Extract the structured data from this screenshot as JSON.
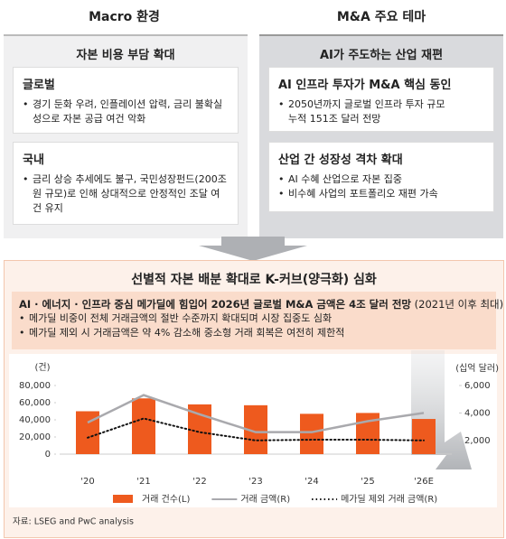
{
  "headers": {
    "left": "Macro 환경",
    "right": "M&A 주요 테마"
  },
  "left_panel": {
    "title": "자본 비용 부담 확대",
    "cards": [
      {
        "title": "글로벌",
        "bullets": [
          "경기 둔화 우려, 인플레이션 압력, 금리 불확실성으로 자본 공급 여건 악화"
        ]
      },
      {
        "title": "국내",
        "bullets": [
          "금리 상승 추세에도 불구, 국민성장펀드(200조 원 규모)로 인해 상대적으로 안정적인 조달 여건 유지"
        ]
      }
    ]
  },
  "right_panel": {
    "title": "AI가 주도하는 산업 재편",
    "cards": [
      {
        "title": "AI 인프라 투자가 M&A 핵심 동인",
        "bullets": [
          "2050년까지 글로벌 인프라 투자 규모 누적 151조 달러 전망"
        ]
      },
      {
        "title": "산업 간 성장성 격차 확대",
        "bullets": [
          "AI 수혜 산업으로 자본 집중",
          "비수혜 사업의 포트폴리오 재편 가속"
        ]
      }
    ]
  },
  "summary": {
    "title": "선별적 자본 배분 확대로 K-커브(양극화) 심화",
    "highlight": "AI · 에너지 · 인프라 중심 메가딜에 힘입어 2026년 글로벌 M&A 금액은 4조 달러 전망",
    "highlight_note": "(2021년 이후 최대)",
    "bullets": [
      "메가딜 비중이 전체 거래금액의 절반 수준까지 확대되며 시장 집중도 심화",
      "메가딜 제외 시 거래금액은 약 4% 감소해 중소형 거래 회복은 여전히 제한적"
    ]
  },
  "chart_data": {
    "type": "bar",
    "ylabel": "(건)",
    "y2label": "(십억 달러)",
    "categories": [
      "'20",
      "'21",
      "'22",
      "'23",
      "'24",
      "'25",
      "'26E"
    ],
    "series": [
      {
        "name": "거래 건수(L)",
        "type": "bar",
        "color": "#ee5a1e",
        "values": [
          50000,
          65000,
          58000,
          57000,
          47000,
          48000,
          41000
        ]
      },
      {
        "name": "거래 금액(R)",
        "type": "line",
        "axis": "y2",
        "color": "#a9a9ad",
        "line_style": "solid",
        "values": [
          3300,
          5300,
          3900,
          2600,
          2600,
          3400,
          4000
        ]
      },
      {
        "name": "메가딜 제외 거래 금액(R)",
        "type": "line",
        "axis": "y2",
        "color": "#111111",
        "line_style": "dotted",
        "values": [
          2200,
          3600,
          2600,
          2000,
          2050,
          2050,
          2000
        ]
      }
    ],
    "ylim": [
      0,
      80000
    ],
    "yticks": [
      0,
      {
        "value": 20000,
        "label": "20,000"
      },
      {
        "value": 40000,
        "label": "40,000"
      },
      {
        "value": 60000,
        "label": "60,000"
      },
      {
        "value": 80000,
        "label": "80,000"
      }
    ],
    "y2lim": [
      1000,
      6000
    ],
    "y2ticks": [
      {
        "value": 2000,
        "label": "2,000"
      },
      {
        "value": 4000,
        "label": "4,000"
      },
      {
        "value": 6000,
        "label": "6,000"
      }
    ],
    "grid": false
  },
  "source": "자료: LSEG and PwC analysis"
}
